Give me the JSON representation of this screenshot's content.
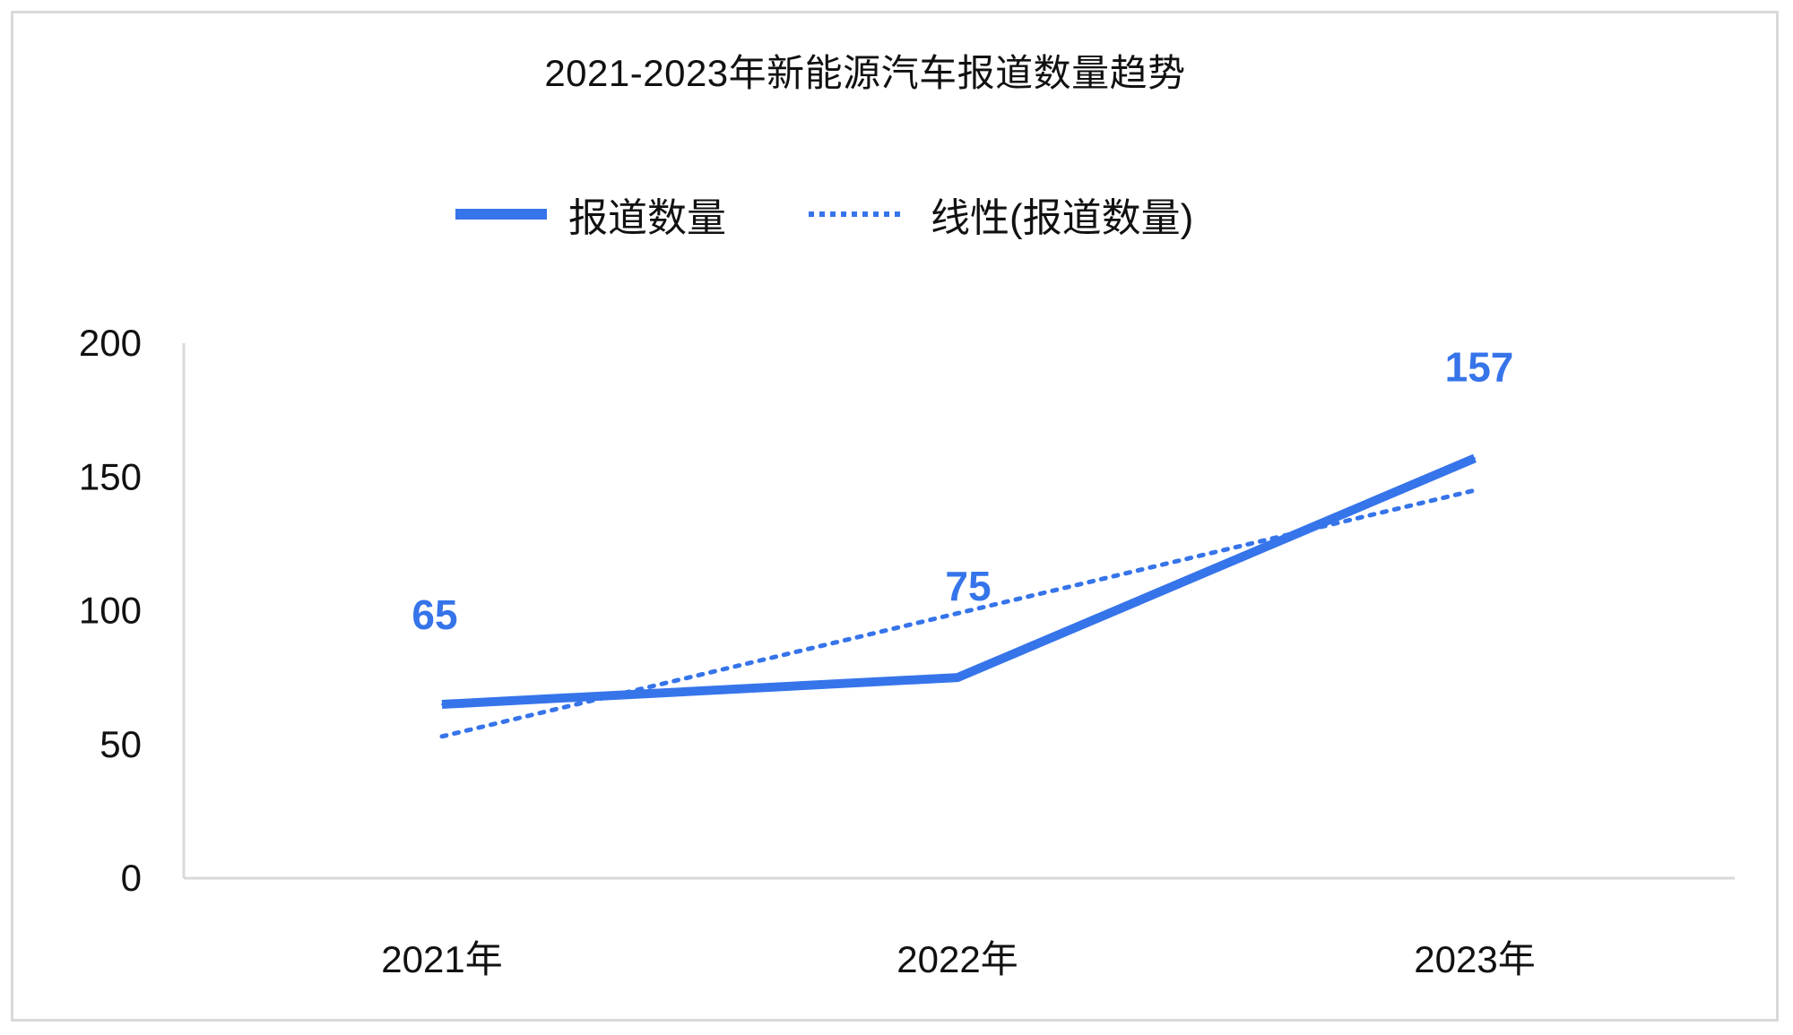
{
  "chart_data": {
    "type": "line",
    "title": "2021-2023年新能源汽车报道数量趋势",
    "xlabel": "",
    "ylabel": "",
    "categories": [
      "2021年",
      "2022年",
      "2023年"
    ],
    "series": [
      {
        "name": "报道数量",
        "values": [
          65,
          75,
          157
        ],
        "style": "solid",
        "color": "#3674ea",
        "data_labels": [
          "65",
          "75",
          "157"
        ]
      },
      {
        "name": "线性(报道数量)",
        "values": [
          53,
          99,
          145
        ],
        "style": "dotted",
        "color": "#3674ea"
      }
    ],
    "ylim": [
      0,
      200
    ],
    "yticks": [
      0,
      50,
      100,
      150,
      200
    ],
    "ytick_labels": [
      "0",
      "50",
      "100",
      "150",
      "200"
    ],
    "grid": false,
    "legend_position": "top-center",
    "colors": {
      "accent": "#3674ea",
      "axis": "#d9d9d9",
      "text": "#111111"
    }
  }
}
